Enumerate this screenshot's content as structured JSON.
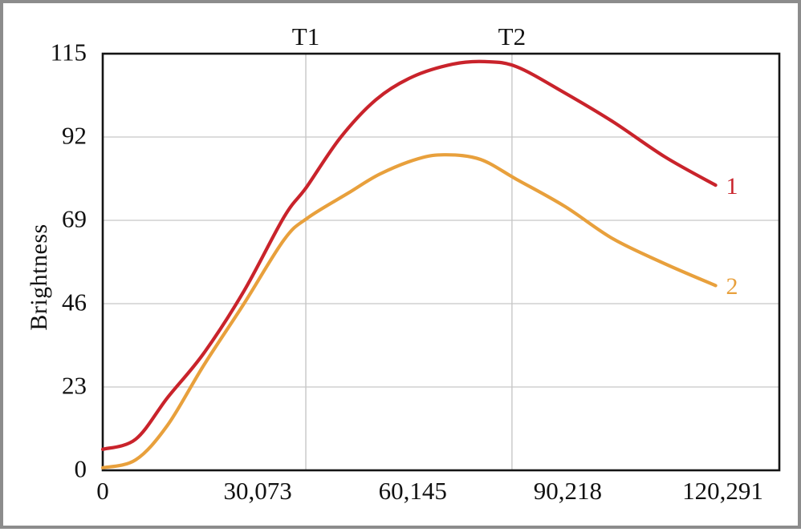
{
  "figure": {
    "outer_border_color": "#8c8c8c",
    "background_color": "#ffffff",
    "text_color": "#111111"
  },
  "chart_data": {
    "type": "line",
    "title": "",
    "xlabel": "",
    "ylabel": "Brightness",
    "xlim": [
      0,
      131270
    ],
    "ylim": [
      0,
      115
    ],
    "grid": "horizontal gridlines at every y tick; vertical gridlines only at reference lines T1 and T2",
    "legend_position": "series labels at right end of each curve",
    "axis_color": "#141414",
    "gridline_color": "#c7c7c7",
    "x_ticks": [
      {
        "value": 0,
        "label": "0"
      },
      {
        "value": 30073,
        "label": "30,073"
      },
      {
        "value": 60145,
        "label": "60,145"
      },
      {
        "value": 90218,
        "label": "90,218"
      },
      {
        "value": 120291,
        "label": "120,291"
      }
    ],
    "y_ticks": [
      {
        "value": 0,
        "label": "0"
      },
      {
        "value": 23,
        "label": "23"
      },
      {
        "value": 46,
        "label": "46"
      },
      {
        "value": 69,
        "label": "69"
      },
      {
        "value": 92,
        "label": "92"
      },
      {
        "value": 115,
        "label": "115"
      }
    ],
    "reference_lines": [
      {
        "label": "T1",
        "x": 39400
      },
      {
        "label": "T2",
        "x": 79400
      }
    ],
    "series": [
      {
        "name": "1",
        "color": "#c9232b",
        "points": [
          [
            0,
            5.8
          ],
          [
            6400,
            8.6
          ],
          [
            12600,
            20.1
          ],
          [
            19600,
            32.3
          ],
          [
            27400,
            49.5
          ],
          [
            35200,
            70.0
          ],
          [
            39500,
            78.1
          ],
          [
            46100,
            91.8
          ],
          [
            53100,
            102.4
          ],
          [
            60100,
            108.6
          ],
          [
            67900,
            112.1
          ],
          [
            74100,
            112.8
          ],
          [
            80300,
            111.4
          ],
          [
            89600,
            104.2
          ],
          [
            99000,
            96.2
          ],
          [
            109100,
            86.5
          ],
          [
            118900,
            78.7
          ]
        ]
      },
      {
        "name": "2",
        "color": "#e8a03c",
        "points": [
          [
            0,
            0.7
          ],
          [
            6400,
            2.9
          ],
          [
            12600,
            12.5
          ],
          [
            19600,
            29.0
          ],
          [
            27400,
            46.0
          ],
          [
            35200,
            63.7
          ],
          [
            39800,
            69.7
          ],
          [
            47600,
            76.5
          ],
          [
            53800,
            81.8
          ],
          [
            61200,
            86.0
          ],
          [
            66600,
            87.1
          ],
          [
            73300,
            85.8
          ],
          [
            80300,
            80.3
          ],
          [
            89600,
            72.9
          ],
          [
            99000,
            63.9
          ],
          [
            109100,
            57.0
          ],
          [
            118900,
            51.0
          ]
        ]
      }
    ]
  }
}
